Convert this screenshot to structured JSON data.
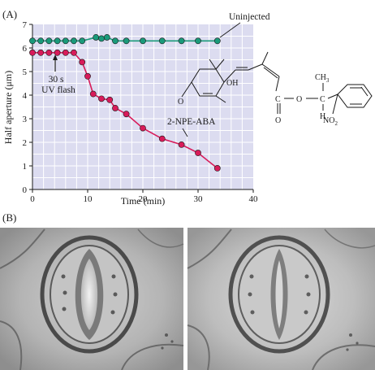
{
  "figure": {
    "panel_a_label": "(A)",
    "panel_b_label": "(B)"
  },
  "annotations": {
    "uv_flash_line1": "30 s",
    "uv_flash_line2": "UV flash",
    "uninjected": "Uninjected",
    "npe_aba": "2-NPE-ABA"
  },
  "chemical": {
    "oh": "OH",
    "o_left": "O",
    "o_carbonyl": "O",
    "c_carbonyl": "C",
    "o_ester": "O",
    "c_alpha": "C",
    "ch3": "CH3",
    "h": "H",
    "no2": "NO2"
  },
  "chart_data": {
    "type": "line",
    "xlabel": "Time (min)",
    "ylabel": "Half aperture (μm)",
    "xlim": [
      0,
      40
    ],
    "ylim": [
      0,
      7
    ],
    "xticks": [
      "0",
      "10",
      "20",
      "30",
      "40"
    ],
    "yticks": [
      "0",
      "1",
      "2",
      "3",
      "4",
      "5",
      "6",
      "7"
    ],
    "grid": true,
    "background_color": "#dcdcf0",
    "series": [
      {
        "name": "Uninjected",
        "color": "#1a9a7a",
        "x": [
          0,
          1.5,
          3,
          4.5,
          6,
          7.5,
          9,
          11.5,
          12.5,
          13.5,
          15,
          17,
          20,
          23.5,
          27,
          30,
          33.5
        ],
        "y": [
          6.3,
          6.3,
          6.3,
          6.3,
          6.3,
          6.3,
          6.3,
          6.45,
          6.4,
          6.45,
          6.3,
          6.3,
          6.3,
          6.3,
          6.3,
          6.3,
          6.3
        ]
      },
      {
        "name": "2-NPE-ABA",
        "color": "#d81b5a",
        "x": [
          0,
          1.5,
          3,
          4.5,
          6,
          7.5,
          9,
          10,
          11,
          12.5,
          14,
          15,
          17,
          20,
          23.5,
          27,
          30,
          33.5
        ],
        "y": [
          5.8,
          5.8,
          5.8,
          5.8,
          5.8,
          5.8,
          5.4,
          4.8,
          4.05,
          3.85,
          3.8,
          3.45,
          3.2,
          2.6,
          2.15,
          1.9,
          1.55,
          0.9
        ]
      }
    ]
  },
  "colors": {
    "plot_bg": "#dcdcf0",
    "grid": "#ffffff",
    "axis": "#1a1a1a",
    "uninjected": "#1a9a7a",
    "npe": "#d81b5a",
    "micrograph_bg": "#a9a9a9"
  },
  "icons": {
    "arrow": "arrow-up-icon"
  }
}
